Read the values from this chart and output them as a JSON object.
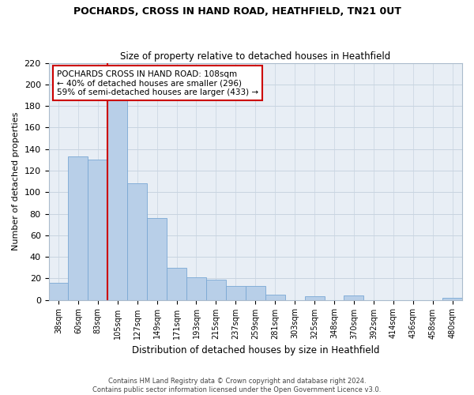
{
  "title": "POCHARDS, CROSS IN HAND ROAD, HEATHFIELD, TN21 0UT",
  "subtitle": "Size of property relative to detached houses in Heathfield",
  "xlabel": "Distribution of detached houses by size in Heathfield",
  "ylabel": "Number of detached properties",
  "bar_labels": [
    "38sqm",
    "60sqm",
    "83sqm",
    "105sqm",
    "127sqm",
    "149sqm",
    "171sqm",
    "193sqm",
    "215sqm",
    "237sqm",
    "259sqm",
    "281sqm",
    "303sqm",
    "325sqm",
    "348sqm",
    "370sqm",
    "392sqm",
    "414sqm",
    "436sqm",
    "458sqm",
    "480sqm"
  ],
  "bar_values": [
    16,
    133,
    130,
    185,
    108,
    76,
    30,
    21,
    19,
    13,
    13,
    5,
    0,
    3,
    0,
    4,
    0,
    0,
    0,
    0,
    2
  ],
  "bar_color": "#b8cfe8",
  "bar_edge_color": "#7aa8d4",
  "highlight_bar_index": 3,
  "highlight_color": "#cc0000",
  "ylim": [
    0,
    220
  ],
  "yticks": [
    0,
    20,
    40,
    60,
    80,
    100,
    120,
    140,
    160,
    180,
    200,
    220
  ],
  "annotation_title": "POCHARDS CROSS IN HAND ROAD: 108sqm",
  "annotation_line1": "← 40% of detached houses are smaller (296)",
  "annotation_line2": "59% of semi-detached houses are larger (433) →",
  "footer1": "Contains HM Land Registry data © Crown copyright and database right 2024.",
  "footer2": "Contains public sector information licensed under the Open Government Licence v3.0.",
  "background_color": "#e8eef5"
}
